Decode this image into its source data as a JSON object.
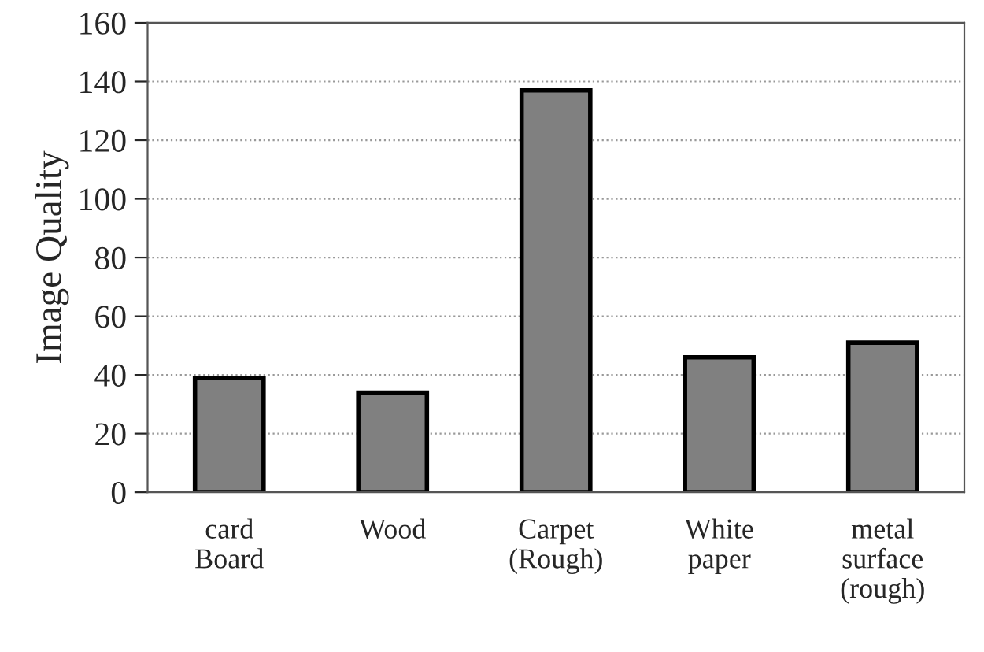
{
  "chart_data": {
    "type": "bar",
    "ylabel": "Image Quality",
    "categories": [
      "card\nBoard",
      "Wood",
      "Carpet\n(Rough)",
      "White\npaper",
      "metal\nsurface\n(rough)"
    ],
    "values": [
      39,
      34,
      137,
      46,
      51
    ],
    "color": "#808080",
    "ylim": [
      0,
      160
    ],
    "yticks": [
      0,
      20,
      40,
      60,
      80,
      100,
      120,
      140,
      160
    ],
    "grid": "y"
  }
}
